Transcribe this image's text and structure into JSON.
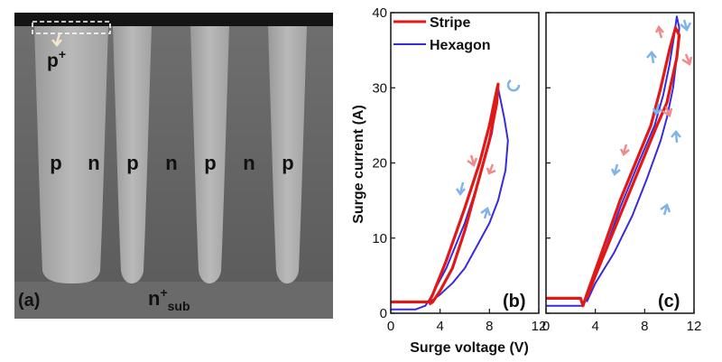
{
  "panel_a": {
    "label": "(a)",
    "p_plus": "p",
    "p_plus_sup": "+",
    "columns": [
      "p",
      "n",
      "p",
      "n",
      "p",
      "n",
      "p"
    ],
    "substrate_main": "n",
    "substrate_sup": "+",
    "substrate_sub": "sub"
  },
  "panel_b": {
    "label": "(b)"
  },
  "panel_c": {
    "label": "(c)"
  },
  "legend": {
    "stripe": "Stripe",
    "hexagon": "Hexagon"
  },
  "axes": {
    "ylabel": "Surge current (A)",
    "xlabel": "Surge voltage (V)",
    "yticks": [
      "0",
      "10",
      "20",
      "30",
      "40"
    ],
    "xticks": [
      "0",
      "4",
      "8",
      "12"
    ]
  },
  "colors": {
    "stripe": "#e01818",
    "hexagon": "#3a2bd8",
    "arrow_blue": "#7fb4ea",
    "arrow_red": "#f08a8a"
  },
  "chart_data": [
    {
      "type": "line",
      "panel": "(b)",
      "xlabel": "Surge voltage (V)",
      "ylabel": "Surge current (A)",
      "xlim": [
        0,
        12
      ],
      "ylim": [
        0,
        40
      ],
      "series": [
        {
          "name": "Stripe",
          "x": [
            0,
            2.8,
            3.1,
            3.4,
            4.5,
            6.0,
            7.2,
            8.0,
            8.5,
            8.7,
            8.6,
            8.0,
            7.0,
            6.0,
            5.0,
            4.0,
            3.4,
            3.1
          ],
          "y": [
            1.5,
            1.5,
            1.5,
            2.5,
            7,
            14,
            20,
            25,
            29,
            30.5,
            28,
            23,
            17,
            11,
            6,
            3,
            1.5,
            1.2
          ]
        },
        {
          "name": "Hexagon",
          "x": [
            0,
            2.0,
            2.8,
            3.2,
            4.5,
            6.0,
            7.2,
            8.2,
            8.7,
            9.2,
            9.5,
            9.3,
            8.7,
            8.0,
            7.0,
            6.0,
            5.0,
            4.0,
            3.2
          ],
          "y": [
            0.5,
            0.5,
            1.0,
            2.0,
            6,
            12,
            18,
            24,
            30,
            26,
            23,
            19,
            15,
            12,
            9,
            6,
            4,
            2.5,
            1.5
          ]
        }
      ]
    },
    {
      "type": "line",
      "panel": "(c)",
      "xlabel": "Surge voltage (V)",
      "ylabel": "Surge current (A)",
      "xlim": [
        0,
        12
      ],
      "ylim": [
        0,
        40
      ],
      "series": [
        {
          "name": "Stripe",
          "x": [
            0,
            2.8,
            3.0,
            3.3,
            4.5,
            6.0,
            7.5,
            8.5,
            9.3,
            10.0,
            10.5,
            10.8,
            10.6,
            10.2,
            9.8,
            9.0,
            8.0,
            6.5,
            5.0,
            4.0,
            3.3
          ],
          "y": [
            2.0,
            2.0,
            1.0,
            2.5,
            8,
            15,
            21,
            25,
            30,
            35,
            38,
            37,
            34,
            31,
            28,
            25,
            21,
            15,
            9,
            5,
            2
          ]
        },
        {
          "name": "Hexagon",
          "x": [
            0,
            2.0,
            2.9,
            3.3,
            4.5,
            6.0,
            7.5,
            8.8,
            9.5,
            10.0,
            10.4,
            10.6,
            10.8,
            10.6,
            10.3,
            9.8,
            9.3,
            8.2,
            7.0,
            5.5,
            4.0,
            3.3
          ],
          "y": [
            1.0,
            1.0,
            1.0,
            2.0,
            7,
            14,
            20,
            25,
            29,
            33,
            37,
            39.5,
            38,
            34,
            30,
            26,
            23,
            18,
            13,
            8,
            4,
            1.5
          ]
        }
      ]
    }
  ]
}
